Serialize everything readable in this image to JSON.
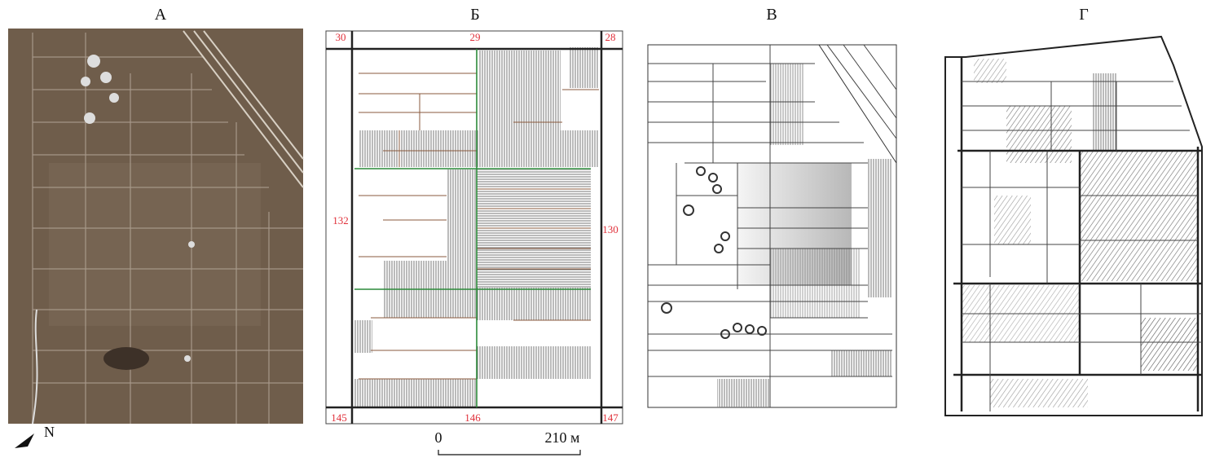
{
  "panels": [
    {
      "label": "А"
    },
    {
      "label": "Б",
      "parcel_numbers": [
        "30",
        "29",
        "28",
        "132",
        "130",
        "145",
        "146",
        "147"
      ]
    },
    {
      "label": "В"
    },
    {
      "label": "Г"
    }
  ],
  "scale_bar": {
    "start": "0",
    "end": "210 м"
  },
  "north_arrow": "N"
}
